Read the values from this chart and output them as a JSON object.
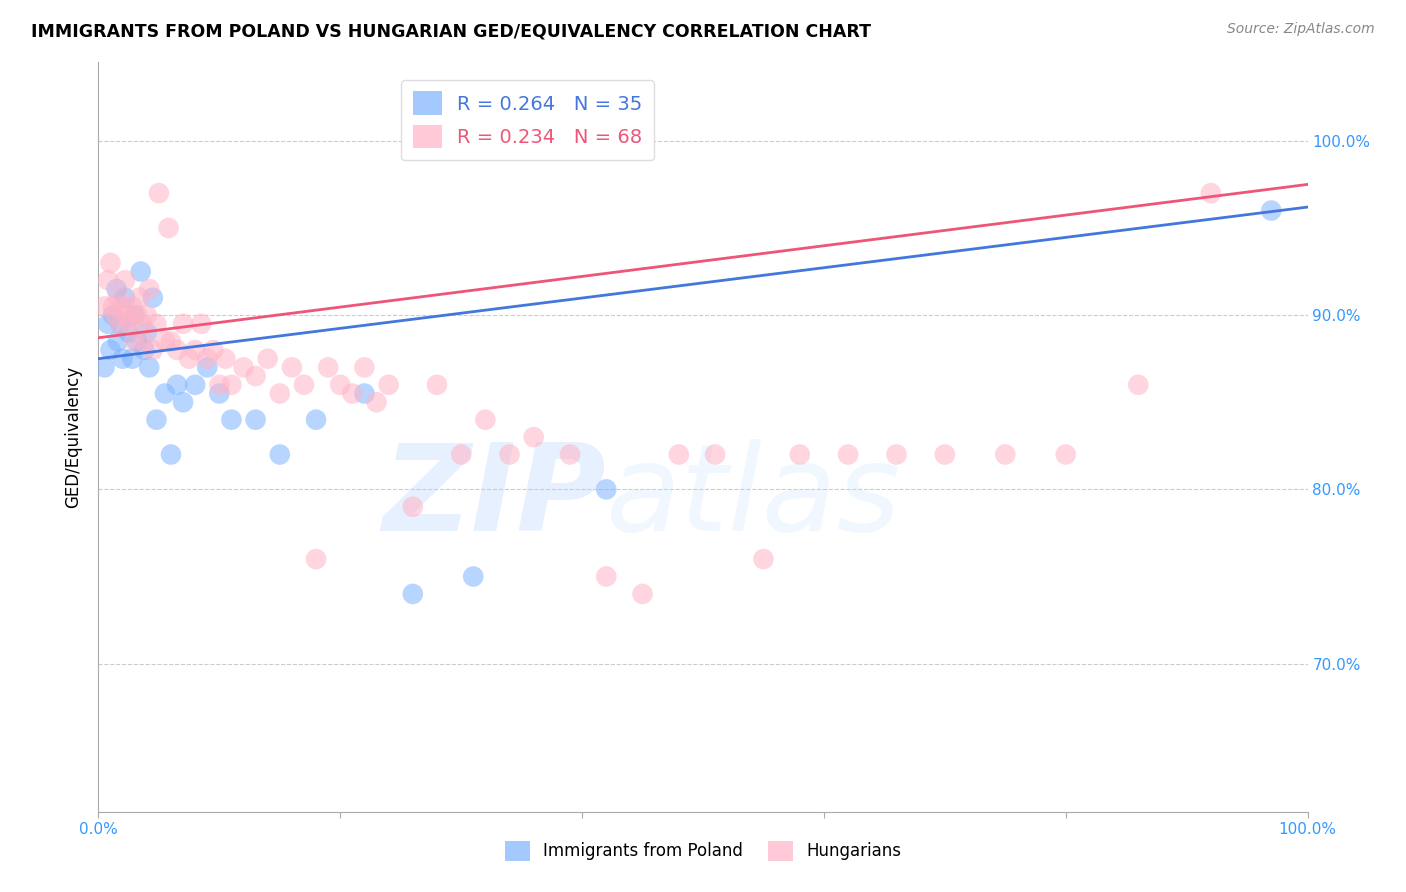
{
  "title": "IMMIGRANTS FROM POLAND VS HUNGARIAN GED/EQUIVALENCY CORRELATION CHART",
  "source": "Source: ZipAtlas.com",
  "ylabel": "GED/Equivalency",
  "yticks": [
    "70.0%",
    "80.0%",
    "90.0%",
    "100.0%"
  ],
  "ytick_vals": [
    0.7,
    0.8,
    0.9,
    1.0
  ],
  "xtick_vals": [
    0.0,
    0.2,
    0.4,
    0.6,
    0.8,
    1.0
  ],
  "xlim": [
    0.0,
    1.0
  ],
  "ylim": [
    0.615,
    1.045
  ],
  "poland_R": 0.264,
  "poland_N": 35,
  "hungarian_R": 0.234,
  "hungarian_N": 68,
  "poland_color": "#7EB3FF",
  "hungarian_color": "#FFB3C6",
  "poland_line_color": "#4477DD",
  "hungarian_line_color": "#EE5577",
  "legend_label_poland": "Immigrants from Poland",
  "legend_label_hungarian": "Hungarians",
  "watermark_zip": "ZIP",
  "watermark_atlas": "atlas",
  "poland_x": [
    0.005,
    0.008,
    0.01,
    0.012,
    0.015,
    0.016,
    0.018,
    0.02,
    0.022,
    0.025,
    0.028,
    0.03,
    0.032,
    0.035,
    0.038,
    0.04,
    0.042,
    0.045,
    0.048,
    0.055,
    0.06,
    0.065,
    0.07,
    0.08,
    0.09,
    0.1,
    0.11,
    0.13,
    0.15,
    0.18,
    0.22,
    0.26,
    0.31,
    0.42,
    0.97
  ],
  "poland_y": [
    0.87,
    0.895,
    0.88,
    0.9,
    0.915,
    0.885,
    0.895,
    0.875,
    0.91,
    0.89,
    0.875,
    0.9,
    0.885,
    0.925,
    0.88,
    0.89,
    0.87,
    0.91,
    0.84,
    0.855,
    0.82,
    0.86,
    0.85,
    0.86,
    0.87,
    0.855,
    0.84,
    0.84,
    0.82,
    0.84,
    0.855,
    0.74,
    0.75,
    0.8,
    0.96
  ],
  "hungarian_x": [
    0.005,
    0.008,
    0.01,
    0.012,
    0.014,
    0.016,
    0.018,
    0.02,
    0.022,
    0.024,
    0.026,
    0.028,
    0.03,
    0.032,
    0.034,
    0.036,
    0.038,
    0.04,
    0.042,
    0.045,
    0.048,
    0.05,
    0.055,
    0.058,
    0.06,
    0.065,
    0.07,
    0.075,
    0.08,
    0.085,
    0.09,
    0.095,
    0.1,
    0.105,
    0.11,
    0.12,
    0.13,
    0.14,
    0.15,
    0.16,
    0.17,
    0.18,
    0.19,
    0.2,
    0.21,
    0.22,
    0.23,
    0.24,
    0.26,
    0.28,
    0.3,
    0.32,
    0.34,
    0.36,
    0.39,
    0.42,
    0.45,
    0.48,
    0.51,
    0.55,
    0.58,
    0.62,
    0.66,
    0.7,
    0.75,
    0.8,
    0.86,
    0.92
  ],
  "hungarian_y": [
    0.905,
    0.92,
    0.93,
    0.905,
    0.9,
    0.91,
    0.895,
    0.905,
    0.92,
    0.9,
    0.895,
    0.905,
    0.885,
    0.9,
    0.91,
    0.895,
    0.885,
    0.9,
    0.915,
    0.88,
    0.895,
    0.97,
    0.885,
    0.95,
    0.885,
    0.88,
    0.895,
    0.875,
    0.88,
    0.895,
    0.875,
    0.88,
    0.86,
    0.875,
    0.86,
    0.87,
    0.865,
    0.875,
    0.855,
    0.87,
    0.86,
    0.76,
    0.87,
    0.86,
    0.855,
    0.87,
    0.85,
    0.86,
    0.79,
    0.86,
    0.82,
    0.84,
    0.82,
    0.83,
    0.82,
    0.75,
    0.74,
    0.82,
    0.82,
    0.76,
    0.82,
    0.82,
    0.82,
    0.82,
    0.82,
    0.82,
    0.86,
    0.97
  ]
}
